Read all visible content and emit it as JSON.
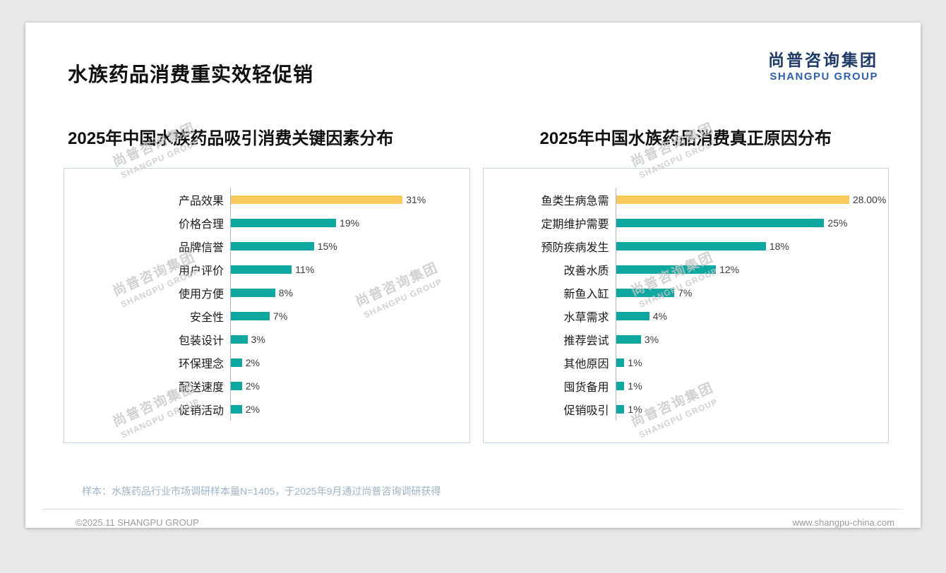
{
  "page": {
    "title": "水族药品消费重实效轻促销",
    "logo": {
      "cn": "尚普咨询集团",
      "en": "SHANGPU GROUP"
    },
    "watermark": {
      "cn": "尚普咨询集团",
      "en": "SHANGPU GROUP"
    },
    "footnote": "样本：水族药品行业市场调研样本量N=1405，于2025年9月通过尚普咨询调研获得",
    "footer": {
      "left": "©2025.11 SHANGPU GROUP",
      "right": "www.shangpu-china.com"
    }
  },
  "colors": {
    "bar_highlight": "#F8C95C",
    "bar_default": "#0FA8A0",
    "logo_cn": "#1E3A66",
    "logo_en": "#2E5FA8",
    "chart_border": "#C3D6E8"
  },
  "chart_data": [
    {
      "type": "bar",
      "orientation": "horizontal",
      "title": "2025年中国水族药品吸引消费关键因素分布",
      "categories": [
        "产品效果",
        "价格合理",
        "品牌信誉",
        "用户评价",
        "使用方便",
        "安全性",
        "包装设计",
        "环保理念",
        "配送速度",
        "促销活动"
      ],
      "values": [
        31,
        19,
        15,
        11,
        8,
        7,
        3,
        2,
        2,
        2
      ],
      "labels": [
        "31%",
        "19%",
        "15%",
        "11%",
        "8%",
        "7%",
        "3%",
        "2%",
        "2%",
        "2%"
      ],
      "highlight_index": 0,
      "xlim": [
        0,
        42
      ],
      "grid": false,
      "legend": false
    },
    {
      "type": "bar",
      "orientation": "horizontal",
      "title": "2025年中国水族药品消费真正原因分布",
      "categories": [
        "鱼类生病急需",
        "定期维护需要",
        "预防疾病发生",
        "改善水质",
        "新鱼入缸",
        "水草需求",
        "推荐尝试",
        "其他原因",
        "囤货备用",
        "促销吸引"
      ],
      "values": [
        28,
        25,
        18,
        12,
        7,
        4,
        3,
        1,
        1,
        1
      ],
      "labels": [
        "28.00%",
        "25%",
        "18%",
        "12%",
        "7%",
        "4%",
        "3%",
        "1%",
        "1%",
        "1%"
      ],
      "highlight_index": 0,
      "xlim": [
        0,
        32
      ],
      "grid": false,
      "legend": false
    }
  ]
}
